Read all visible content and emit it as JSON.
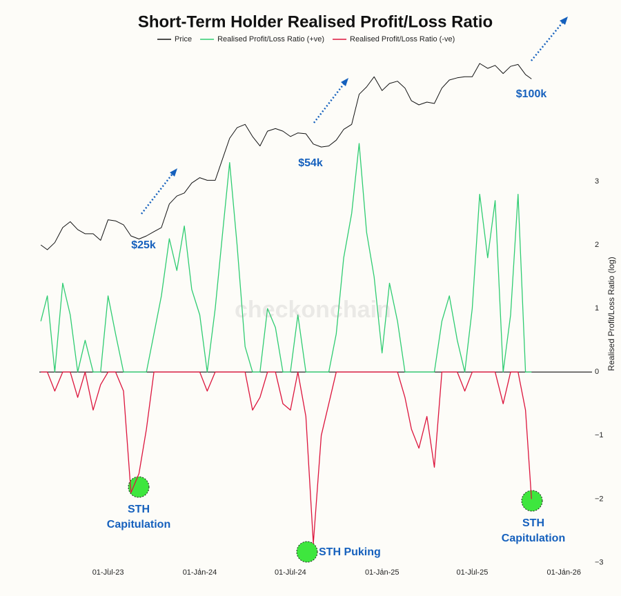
{
  "chart_data": {
    "type": "line",
    "title": "Short-Term Holder Realised Profit/Loss Ratio",
    "y_label": "Realised Profit/Loss Ratio (log)",
    "watermark": "checkonchain",
    "x": [
      "2023-02-16",
      "2023-03-01",
      "2023-03-16",
      "2023-04-01",
      "2023-04-16",
      "2023-05-01",
      "2023-05-16",
      "2023-06-01",
      "2023-06-16",
      "2023-07-01",
      "2023-07-16",
      "2023-08-01",
      "2023-08-16",
      "2023-09-01",
      "2023-09-16",
      "2023-10-01",
      "2023-10-16",
      "2023-11-01",
      "2023-11-16",
      "2023-12-01",
      "2023-12-16",
      "2024-01-01",
      "2024-01-16",
      "2024-02-01",
      "2024-02-16",
      "2024-03-01",
      "2024-03-16",
      "2024-04-01",
      "2024-04-16",
      "2024-05-01",
      "2024-05-16",
      "2024-06-01",
      "2024-06-16",
      "2024-07-01",
      "2024-07-16",
      "2024-08-01",
      "2024-08-16",
      "2024-09-01",
      "2024-09-16",
      "2024-10-01",
      "2024-10-16",
      "2024-11-01",
      "2024-11-16",
      "2024-12-01",
      "2024-12-16",
      "2025-01-01",
      "2025-01-16",
      "2025-02-01",
      "2025-02-16",
      "2025-03-01",
      "2025-03-16",
      "2025-04-01",
      "2025-04-16",
      "2025-05-01",
      "2025-05-16",
      "2025-06-01",
      "2025-06-16",
      "2025-07-01",
      "2025-07-16",
      "2025-08-01",
      "2025-08-16",
      "2025-09-01",
      "2025-09-16",
      "2025-10-01",
      "2025-10-16",
      "2025-10-28"
    ],
    "series": [
      {
        "name": "Price",
        "color": "#111111",
        "axis": "price",
        "log": true,
        "values": [
          24.5,
          23.5,
          25,
          28.5,
          30,
          28,
          27,
          27,
          25.5,
          30.5,
          30.2,
          29.2,
          26.5,
          25.8,
          26.5,
          27.5,
          28.5,
          35,
          37.5,
          38.5,
          42,
          44,
          43,
          43,
          52,
          62,
          68,
          70,
          63,
          58,
          66,
          67.5,
          66,
          63,
          65,
          64.5,
          59,
          57.5,
          58,
          61,
          67,
          70,
          91,
          97,
          106,
          94,
          100,
          102,
          96,
          86,
          83,
          85,
          84,
          96,
          103,
          105,
          106,
          106,
          119,
          114,
          117,
          109,
          116,
          118,
          108,
          104
        ]
      },
      {
        "name": "Realised Profit/Loss Ratio (+ve)",
        "color": "#2ecc71",
        "values": [
          0.8,
          1.2,
          0,
          1.4,
          0.9,
          0,
          0.5,
          0,
          0,
          1.2,
          0.6,
          0,
          0,
          0,
          0,
          0.6,
          1.2,
          2.1,
          1.6,
          2.3,
          1.3,
          0.9,
          0,
          1.0,
          2.2,
          3.3,
          2.0,
          0.4,
          0,
          0,
          1.0,
          0.7,
          0,
          0,
          0.9,
          0,
          0,
          0,
          0,
          0.6,
          1.8,
          2.5,
          3.6,
          2.2,
          1.5,
          0.3,
          1.4,
          0.8,
          0,
          0,
          0,
          0,
          0,
          0.8,
          1.2,
          0.5,
          0,
          1.0,
          2.8,
          1.8,
          2.7,
          0,
          0.9,
          2.8,
          0,
          0
        ]
      },
      {
        "name": "Realised Profit/Loss Ratio (-ve)",
        "color": "#dc143c",
        "values": [
          0,
          0,
          -0.3,
          0,
          0,
          -0.4,
          0,
          -0.6,
          -0.2,
          0,
          0,
          -0.3,
          -1.9,
          -1.6,
          -0.9,
          0,
          0,
          0,
          0,
          0,
          0,
          0,
          -0.3,
          0,
          0,
          0,
          0,
          0,
          -0.6,
          -0.4,
          0,
          0,
          -0.5,
          -0.6,
          0,
          -0.7,
          -2.7,
          -1.0,
          -0.5,
          0,
          0,
          0,
          0,
          0,
          0,
          0,
          0,
          0,
          -0.4,
          -0.9,
          -1.2,
          -0.7,
          -1.5,
          0,
          0,
          0,
          -0.3,
          0,
          0,
          0,
          0,
          -0.5,
          0,
          0,
          -0.6,
          -2.0
        ]
      }
    ],
    "xlim": [
      "2023-02-13",
      "2026-03-04"
    ],
    "xticks": [
      {
        "value": "2023-07-01",
        "label": "01-Jul-23"
      },
      {
        "value": "2024-01-01",
        "label": "01-Jan-24"
      },
      {
        "value": "2024-07-01",
        "label": "01-Jul-24"
      },
      {
        "value": "2025-01-01",
        "label": "01-Jan-25"
      },
      {
        "value": "2025-07-01",
        "label": "01-Jul-25"
      },
      {
        "value": "2026-01-01",
        "label": "01-Jan-26"
      }
    ],
    "ylim": [
      -3.05,
      3.6
    ],
    "yticks": [
      {
        "value": -3,
        "label": "−3"
      },
      {
        "value": -2,
        "label": "−2"
      },
      {
        "value": -1,
        "label": "−1"
      },
      0,
      1,
      2,
      3
    ],
    "annotations": [
      "$25k",
      "$54k",
      "$100k",
      "STH Capitulation",
      "STH Puking",
      "STH Capitulation"
    ]
  }
}
